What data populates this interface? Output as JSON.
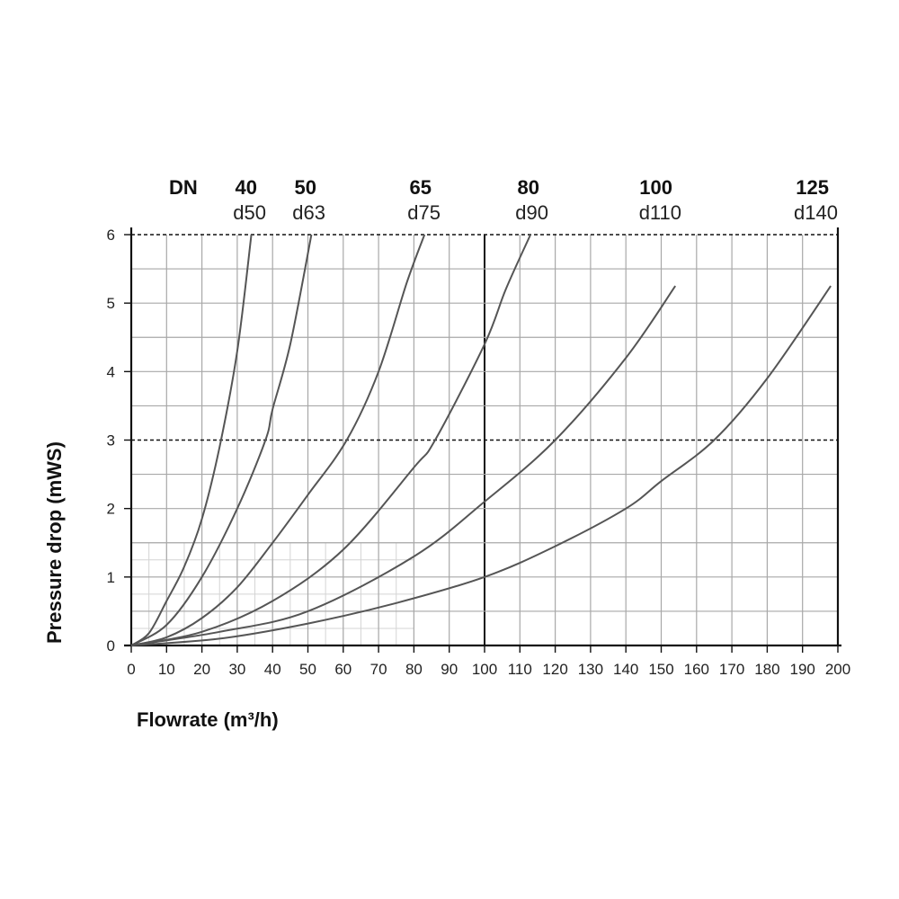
{
  "chart_data": {
    "type": "line",
    "xlabel": "Flowrate (m³/h)",
    "ylabel": "Pressure drop (mWS)",
    "xlim": [
      0,
      200
    ],
    "ylim": [
      0,
      6
    ],
    "x_ticks": [
      "0",
      "10",
      "20",
      "30",
      "40",
      "50",
      "60",
      "70",
      "80",
      "90",
      "100",
      "110",
      "120",
      "130",
      "140",
      "150",
      "160",
      "170",
      "180",
      "190",
      "200"
    ],
    "y_ticks": [
      "0",
      "1",
      "2",
      "3",
      "4",
      "5",
      "6"
    ],
    "dashed_y_lines": [
      3,
      6
    ],
    "bold_x_lines": [
      100
    ],
    "grid": true,
    "header_label": "DN",
    "series": [
      {
        "dn": "40",
        "d": "d50",
        "points": [
          [
            0,
            0
          ],
          [
            5,
            0.18
          ],
          [
            10,
            0.65
          ],
          [
            15,
            1.15
          ],
          [
            20,
            1.85
          ],
          [
            25,
            2.9
          ],
          [
            30,
            4.3
          ],
          [
            34,
            6.0
          ]
        ]
      },
      {
        "dn": "50",
        "d": "d63",
        "points": [
          [
            0,
            0
          ],
          [
            10,
            0.3
          ],
          [
            20,
            1.0
          ],
          [
            30,
            2.0
          ],
          [
            38,
            3.0
          ],
          [
            40,
            3.45
          ],
          [
            45,
            4.4
          ],
          [
            51,
            6.0
          ]
        ]
      },
      {
        "dn": "65",
        "d": "d75",
        "points": [
          [
            0,
            0
          ],
          [
            10,
            0.12
          ],
          [
            20,
            0.4
          ],
          [
            30,
            0.85
          ],
          [
            40,
            1.5
          ],
          [
            50,
            2.2
          ],
          [
            61,
            3.0
          ],
          [
            70,
            4.0
          ],
          [
            78,
            5.3
          ],
          [
            83,
            6.0
          ]
        ]
      },
      {
        "dn": "80",
        "d": "d90",
        "points": [
          [
            0,
            0
          ],
          [
            20,
            0.2
          ],
          [
            40,
            0.65
          ],
          [
            60,
            1.4
          ],
          [
            80,
            2.6
          ],
          [
            86,
            3.0
          ],
          [
            100,
            4.4
          ],
          [
            106,
            5.2
          ],
          [
            113,
            6.0
          ]
        ]
      },
      {
        "dn": "100",
        "d": "d110",
        "points": [
          [
            0,
            0
          ],
          [
            25,
            0.2
          ],
          [
            50,
            0.5
          ],
          [
            80,
            1.3
          ],
          [
            100,
            2.1
          ],
          [
            120,
            3.0
          ],
          [
            140,
            4.2
          ],
          [
            154,
            5.25
          ]
        ]
      },
      {
        "dn": "125",
        "d": "d140",
        "points": [
          [
            0,
            0
          ],
          [
            25,
            0.1
          ],
          [
            50,
            0.32
          ],
          [
            75,
            0.62
          ],
          [
            100,
            1.0
          ],
          [
            120,
            1.45
          ],
          [
            140,
            2.0
          ],
          [
            150,
            2.4
          ],
          [
            165,
            3.0
          ],
          [
            180,
            3.9
          ],
          [
            198,
            5.25
          ]
        ]
      }
    ]
  }
}
